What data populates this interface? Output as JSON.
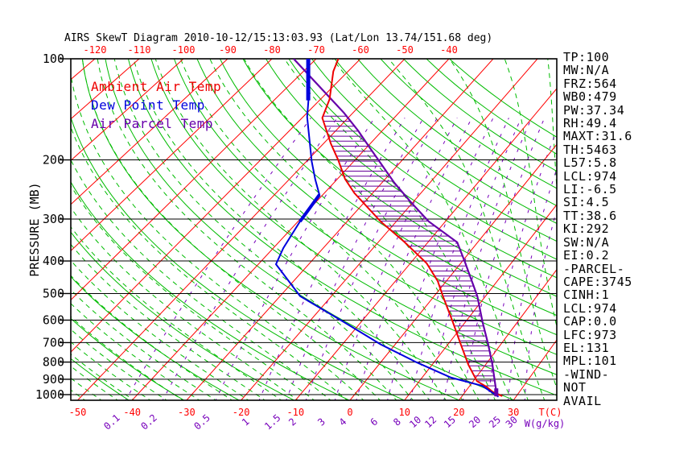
{
  "title": "AIRS SkewT Diagram 2010-10-12/15:13:03.93 (Lat/Lon 13.74/151.68 deg)",
  "legend": {
    "ambient": "Ambient Air Temp",
    "dewpoint": "Dew Point Temp",
    "parcel": "Air Parcel Temp"
  },
  "stats": [
    "TP:100",
    "MW:N/A",
    "FRZ:564",
    "WB0:479",
    "PW:37.34",
    "RH:49.4",
    "MAXT:31.6",
    "TH:5463",
    "L57:5.8",
    "LCL:974",
    "LI:-6.5",
    "SI:4.5",
    "TT:38.6",
    "KI:292",
    "SW:N/A",
    "EI:0.2",
    "-PARCEL-",
    "CAPE:3745",
    "CINH:1",
    "LCL:974",
    "CAP:0.0",
    "LFC:973",
    "EL:131",
    "MPL:101",
    "-WIND-",
    "NOT",
    "AVAIL"
  ],
  "colors": {
    "isotherm": "#ff0000",
    "adiabat_green": "#00bb00",
    "mixing_ratio": "#7700bb",
    "ambient": "#ee0000",
    "dewpoint": "#0000dd",
    "parcel": "#6600aa",
    "hatch": "#660099",
    "axis": "#000000"
  },
  "axes": {
    "pressure_title": "PRESSURE (MB)",
    "pressure_ticks": [
      100,
      200,
      300,
      400,
      500,
      600,
      700,
      800,
      900,
      1000
    ],
    "top_temp_ticks": [
      -120,
      -110,
      -100,
      -90,
      -80,
      -70,
      -60,
      -50,
      -40
    ],
    "bottom_temp_ticks": [
      -50,
      -40,
      -30,
      -20,
      -10,
      0,
      10,
      20,
      30
    ],
    "temp_unit_label": "T(C)",
    "mixing_ratio_ticks": [
      0.1,
      0.2,
      0.5,
      1,
      1.5,
      2,
      3,
      4,
      6,
      8,
      10,
      12,
      15,
      20,
      25,
      30
    ],
    "mixing_unit_label": "W(g/kg)"
  },
  "chart_data": {
    "type": "line",
    "title": "Skew-T log-P thermodynamic diagram",
    "x_axis": {
      "label": "Temperature (C)",
      "top_range": [
        -120,
        -40
      ],
      "bottom_range": [
        -50,
        30
      ]
    },
    "y_axis": {
      "label": "PRESSURE (MB)",
      "scale": "log",
      "range": [
        100,
        1050
      ],
      "inverted": true
    },
    "grid": {
      "isotherms_c": {
        "from": -160,
        "to": 60,
        "step": 10
      },
      "dry_adiabats_k": {
        "from": 230,
        "to": 450,
        "step": 10
      },
      "moist_adiabats_surface_c": {
        "from": -57,
        "to": 45,
        "step": 3
      },
      "mixing_ratio_g_kg": [
        0.1,
        0.2,
        0.5,
        1,
        1.5,
        2,
        3,
        4,
        6,
        8,
        10,
        12,
        15,
        20,
        25,
        30
      ]
    },
    "series": [
      {
        "name": "Ambient Air Temp",
        "points_p_t": [
          [
            100,
            -65
          ],
          [
            109,
            -63.3
          ],
          [
            132,
            -58
          ],
          [
            150,
            -55.6
          ],
          [
            179,
            -48.4
          ],
          [
            200,
            -43.6
          ],
          [
            228,
            -38.4
          ],
          [
            251,
            -33.8
          ],
          [
            305,
            -23.2
          ],
          [
            351,
            -14.8
          ],
          [
            406,
            -6.8
          ],
          [
            459,
            -1.7
          ],
          [
            509,
            1.7
          ],
          [
            608,
            7.6
          ],
          [
            708,
            12.4
          ],
          [
            815,
            16.8
          ],
          [
            912,
            20.7
          ],
          [
            947,
            23.2
          ],
          [
            984,
            25.2
          ],
          [
            1010,
            27.4
          ]
        ]
      },
      {
        "name": "Dew Point Temp",
        "points_p_t": [
          [
            100,
            -71.8
          ],
          [
            133,
            -62.4
          ],
          [
            149,
            -59.1
          ],
          [
            202,
            -48.9
          ],
          [
            229,
            -44.5
          ],
          [
            254,
            -40.7
          ],
          [
            305,
            -39.6
          ],
          [
            366,
            -38
          ],
          [
            409,
            -36.5
          ],
          [
            509,
            -26.1
          ],
          [
            608,
            -13.3
          ],
          [
            708,
            -2.8
          ],
          [
            800,
            6.6
          ],
          [
            890,
            15.4
          ],
          [
            941,
            22.3
          ],
          [
            1015,
            26.8
          ]
        ]
      },
      {
        "name": "Air Parcel Temp",
        "points_p_t": [
          [
            100,
            -75.1
          ],
          [
            145,
            -51.9
          ],
          [
            164,
            -45.1
          ],
          [
            184,
            -39.3
          ],
          [
            200,
            -35.1
          ],
          [
            234,
            -27.4
          ],
          [
            269,
            -20.1
          ],
          [
            305,
            -13.4
          ],
          [
            352,
            -4.1
          ],
          [
            406,
            0.9
          ],
          [
            509,
            8.4
          ],
          [
            608,
            13.3
          ],
          [
            708,
            17.6
          ],
          [
            815,
            21.3
          ],
          [
            912,
            24
          ],
          [
            984,
            25.8
          ]
        ]
      }
    ],
    "cape_hatch": {
      "between": [
        "Ambient Air Temp",
        "Air Parcel Temp"
      ],
      "p_from": 145,
      "p_to": 955
    },
    "dewpoint_thick_segments": [
      {
        "type": "vertical",
        "temp": -71.8,
        "p_from": 100,
        "p_to": 133
      },
      {
        "type": "along_curve",
        "p_from": 254,
        "p_to": 305
      }
    ],
    "surface_parcel_marker": {
      "temp": 25.8,
      "p_from": 958,
      "p_to": 1012
    }
  }
}
